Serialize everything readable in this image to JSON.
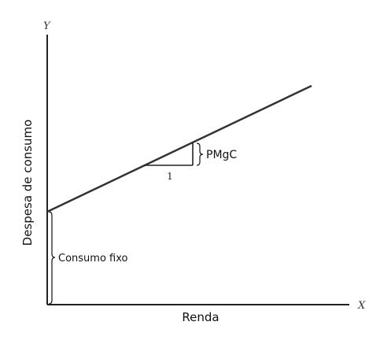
{
  "diagram": {
    "axis_y_letter": "Y",
    "axis_x_letter": "X",
    "y_label": "Despesa de consumo",
    "x_label": "Renda",
    "slope_label": "PMgC",
    "run_label": "1",
    "intercept_label": "Consumo fixo"
  }
}
